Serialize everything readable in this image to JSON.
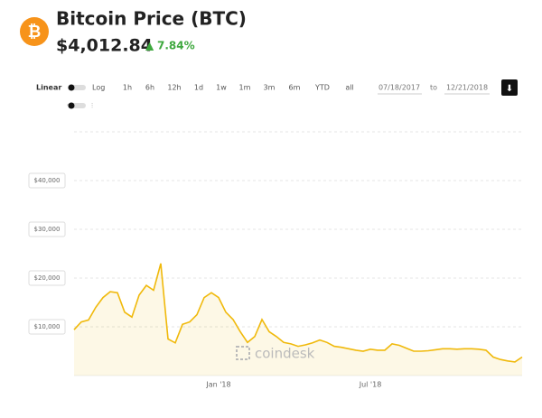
{
  "header": {
    "price": "$4,012.84",
    "change": "7.84%"
  },
  "toolbar": {
    "scales": [
      "Linear",
      "Log"
    ],
    "ranges": [
      "1h",
      "6h",
      "12h",
      "1d",
      "1w",
      "1m",
      "3m",
      "6m",
      "YTD",
      "all"
    ],
    "date_from": "07/18/2017",
    "date_separator": "to",
    "date_to": "12/21/2018"
  },
  "watermark": "coindesk",
  "chart_data": {
    "type": "area",
    "title": "Bitcoin Price (BTC)",
    "color": "#f0b90b",
    "grid": true,
    "categories": [
      null,
      null,
      null,
      null,
      null,
      null,
      null,
      null,
      null,
      null,
      null,
      null,
      null,
      null,
      null,
      null,
      null,
      null,
      null,
      null,
      "Jan '18",
      null,
      null,
      null,
      null,
      null,
      null,
      null,
      null,
      null,
      null,
      null,
      null,
      null,
      null,
      null,
      null,
      null,
      null,
      null,
      null,
      "Jul '18",
      null,
      null,
      null,
      null,
      null,
      null,
      null,
      null,
      null,
      null,
      null,
      null,
      null,
      null,
      null,
      null,
      null,
      null,
      null,
      null,
      null
    ],
    "values": [
      9400,
      11000,
      11400,
      14000,
      16000,
      17200,
      17000,
      13000,
      12000,
      16500,
      18500,
      17500,
      23000,
      7500,
      6700,
      10500,
      11000,
      12500,
      16000,
      17000,
      16000,
      13000,
      11500,
      9000,
      6800,
      8000,
      11500,
      9000,
      8000,
      6800,
      6500,
      6000,
      6300,
      6700,
      7300,
      6800,
      6000,
      5800,
      5500,
      5200,
      5000,
      5400,
      5200,
      5200,
      6500,
      6200,
      5600,
      5000,
      5000,
      5100,
      5300,
      5500,
      5500,
      5400,
      5500,
      5500,
      5400,
      5200,
      3800,
      3300,
      3000,
      2800,
      3800
    ],
    "ylim": [
      0,
      50000
    ],
    "yticks": [
      {
        "value": 10000,
        "label": "$10,000"
      },
      {
        "value": 20000,
        "label": "$20,000"
      },
      {
        "value": 30000,
        "label": "$30,000"
      },
      {
        "value": 40000,
        "label": "$40,000"
      }
    ]
  }
}
